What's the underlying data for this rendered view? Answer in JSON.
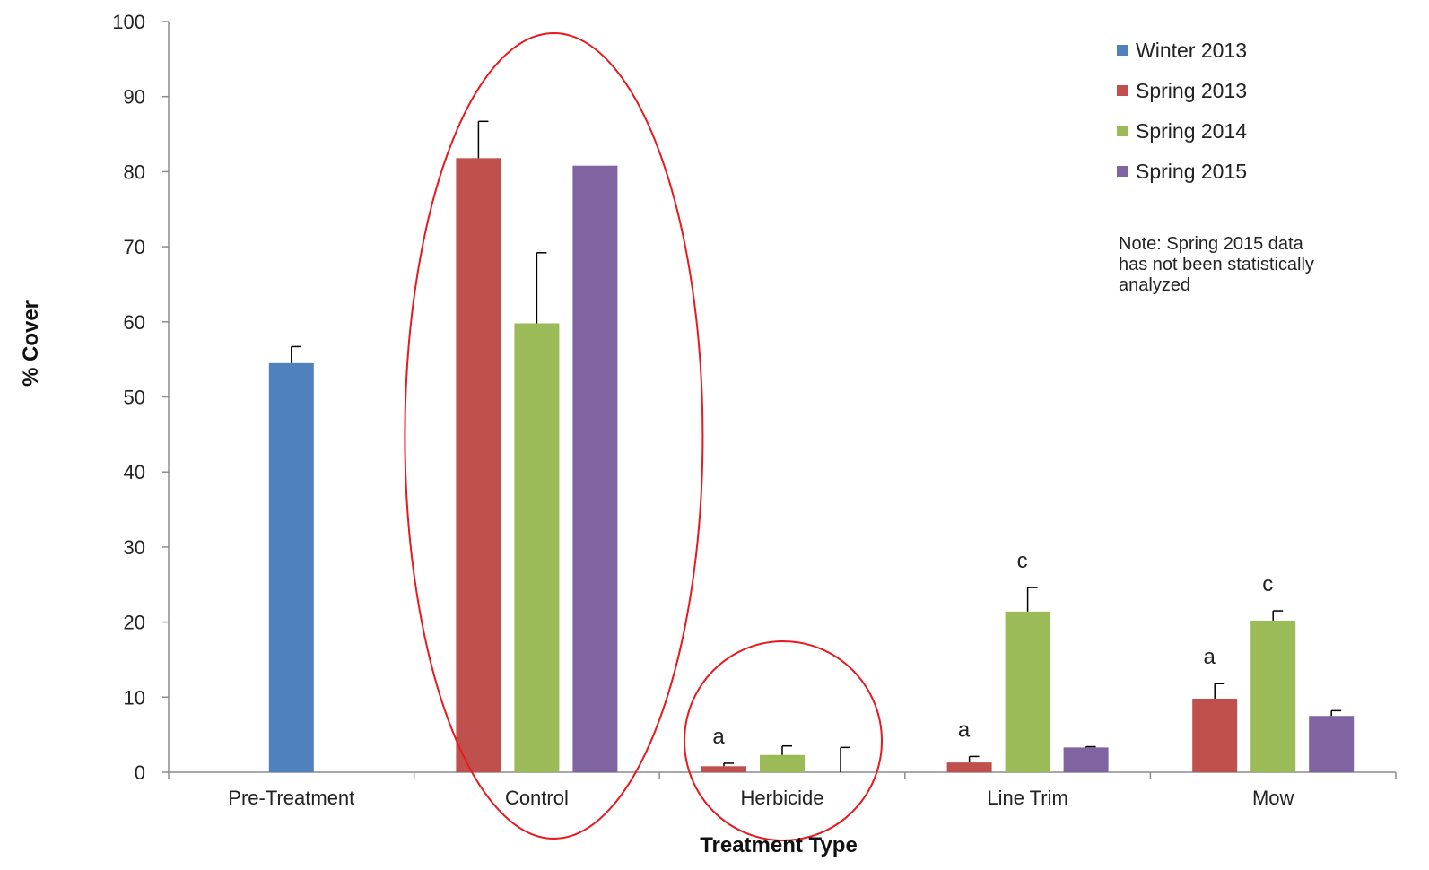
{
  "chart_data": {
    "type": "bar",
    "title": "",
    "xlabel": "Treatment Type",
    "ylabel": "% Cover",
    "ylim": [
      0,
      100
    ],
    "yticks": [
      "0",
      "10",
      "20",
      "30",
      "40",
      "50",
      "60",
      "70",
      "80",
      "90",
      "100"
    ],
    "categories": [
      "Pre-Treatment",
      "Control",
      "Herbicide",
      "Line Trim",
      "Mow"
    ],
    "series": [
      {
        "name": "Winter 2013",
        "color": "#4F81BD",
        "values": [
          54.5,
          null,
          null,
          null,
          null
        ],
        "errors": [
          2.2,
          null,
          null,
          null,
          null
        ]
      },
      {
        "name": "Spring 2013",
        "color": "#C0504D",
        "values": [
          null,
          81.8,
          0.8,
          1.3,
          9.8
        ],
        "errors": [
          null,
          4.9,
          0.4,
          0.8,
          2.0
        ]
      },
      {
        "name": "Spring 2014",
        "color": "#9BBB59",
        "values": [
          null,
          59.8,
          2.3,
          21.4,
          20.2
        ],
        "errors": [
          null,
          9.4,
          1.2,
          3.2,
          1.3
        ]
      },
      {
        "name": "Spring 2015",
        "color": "#8064A2",
        "values": [
          null,
          80.8,
          0,
          3.3,
          7.5
        ],
        "errors": [
          null,
          0,
          3.3,
          0.1,
          0.7
        ]
      }
    ],
    "sig_letters": [
      {
        "category": "Herbicide",
        "series": "Spring 2013",
        "letter": "a"
      },
      {
        "category": "Line Trim",
        "series": "Spring 2013",
        "letter": "a"
      },
      {
        "category": "Line Trim",
        "series": "Spring 2014",
        "letter": "c"
      },
      {
        "category": "Mow",
        "series": "Spring 2013",
        "letter": "a"
      },
      {
        "category": "Mow",
        "series": "Spring 2014",
        "letter": "c"
      }
    ],
    "highlight_ellipses": [
      {
        "category": "Control",
        "color": "#E8191F"
      },
      {
        "category": "Herbicide",
        "color": "#E8191F"
      }
    ],
    "legend": {
      "position": "top-right"
    },
    "note": [
      "Note: Spring 2015 data",
      "has not been statistically",
      "analyzed"
    ],
    "grid": false
  }
}
